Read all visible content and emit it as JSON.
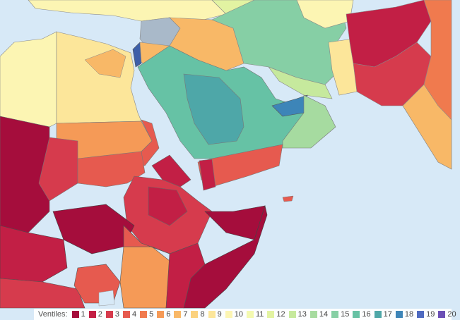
{
  "map": {
    "sea_color": "#d7e9f7",
    "legend": {
      "title": "Ventiles:",
      "items": [
        {
          "label": "1",
          "color": "#a50d3c"
        },
        {
          "label": "2",
          "color": "#c21f45"
        },
        {
          "label": "3",
          "color": "#d63b4d"
        },
        {
          "label": "4",
          "color": "#e65a4f"
        },
        {
          "label": "5",
          "color": "#f07a4e"
        },
        {
          "label": "6",
          "color": "#f59a57"
        },
        {
          "label": "7",
          "color": "#f8b867"
        },
        {
          "label": "8",
          "color": "#fbd27e"
        },
        {
          "label": "9",
          "color": "#fce69a"
        },
        {
          "label": "10",
          "color": "#fcf5b3"
        },
        {
          "label": "11",
          "color": "#f3f9b0"
        },
        {
          "label": "12",
          "color": "#e2f3a2"
        },
        {
          "label": "13",
          "color": "#c6e99d"
        },
        {
          "label": "14",
          "color": "#a6dba0"
        },
        {
          "label": "15",
          "color": "#86cfa5"
        },
        {
          "label": "16",
          "color": "#66c2a5"
        },
        {
          "label": "17",
          "color": "#4ea7a8"
        },
        {
          "label": "18",
          "color": "#3d85b8"
        },
        {
          "label": "19",
          "color": "#4e6ac0"
        },
        {
          "label": "20",
          "color": "#6a4fb5"
        }
      ]
    }
  }
}
